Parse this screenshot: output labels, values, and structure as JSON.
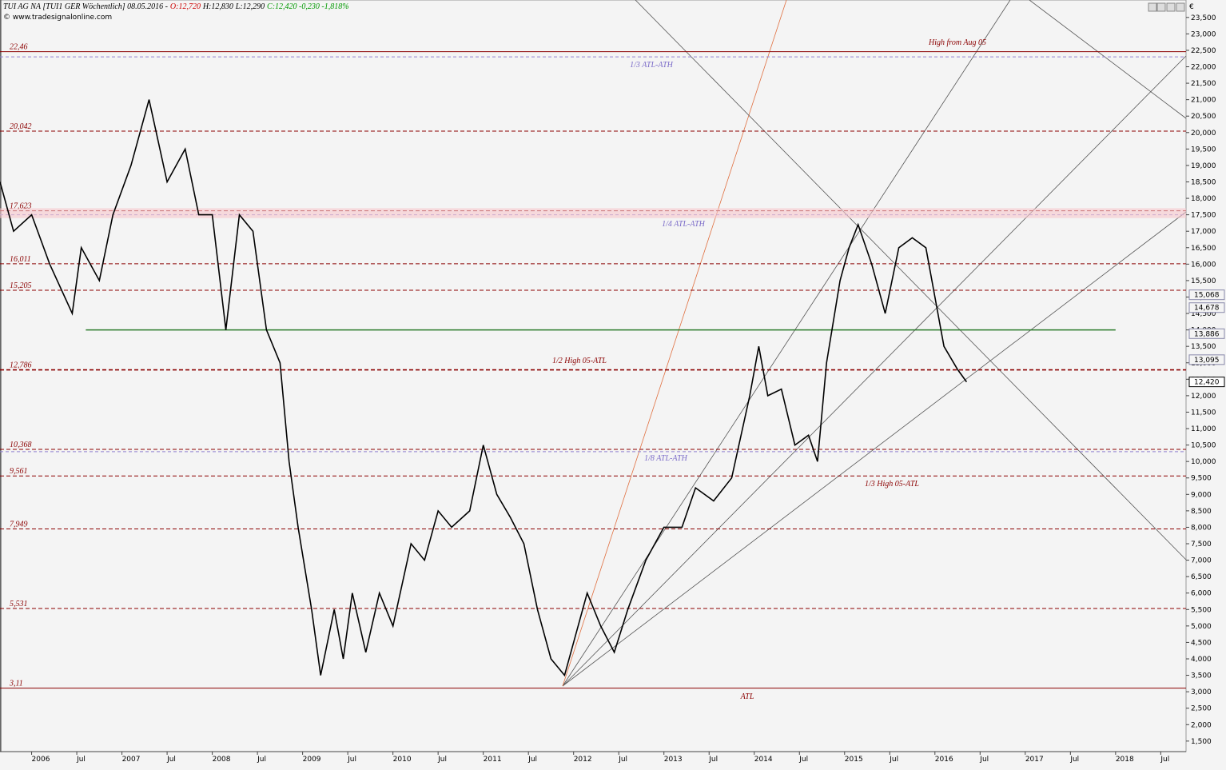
{
  "header": {
    "title": "TUI AG NA [TUI1 GER  Wöchentlich] 08.05.2016 -",
    "open": "O:12,720",
    "high": "H:12,830",
    "low": "L:12,290",
    "close": "C:12,420 -0,230 -1,818%",
    "source": "© www.tradesignalonline.com",
    "currency": "€"
  },
  "chart_data": {
    "type": "line",
    "xlim": [
      2005.65,
      2018.78
    ],
    "ylim": [
      1.18,
      24.03
    ],
    "xticks": [
      {
        "value": 2006,
        "label": "2006"
      },
      {
        "value": 2006.5,
        "label": "Jul"
      },
      {
        "value": 2007,
        "label": "2007"
      },
      {
        "value": 2007.5,
        "label": "Jul"
      },
      {
        "value": 2008,
        "label": "2008"
      },
      {
        "value": 2008.5,
        "label": "Jul"
      },
      {
        "value": 2009,
        "label": "2009"
      },
      {
        "value": 2009.5,
        "label": "Jul"
      },
      {
        "value": 2010,
        "label": "2010"
      },
      {
        "value": 2010.5,
        "label": "Jul"
      },
      {
        "value": 2011,
        "label": "2011"
      },
      {
        "value": 2011.5,
        "label": "Jul"
      },
      {
        "value": 2012,
        "label": "2012"
      },
      {
        "value": 2012.5,
        "label": "Jul"
      },
      {
        "value": 2013,
        "label": "2013"
      },
      {
        "value": 2013.5,
        "label": "Jul"
      },
      {
        "value": 2014,
        "label": "2014"
      },
      {
        "value": 2014.5,
        "label": "Jul"
      },
      {
        "value": 2015,
        "label": "2015"
      },
      {
        "value": 2015.5,
        "label": "Jul"
      },
      {
        "value": 2016,
        "label": "2016"
      },
      {
        "value": 2016.5,
        "label": "Jul"
      },
      {
        "value": 2017,
        "label": "2017"
      },
      {
        "value": 2017.5,
        "label": "Jul"
      },
      {
        "value": 2018,
        "label": "2018"
      },
      {
        "value": 2018.5,
        "label": "Jul"
      }
    ],
    "yticks": [
      {
        "value": 1.5,
        "label": "1,500"
      },
      {
        "value": 2,
        "label": "2,000"
      },
      {
        "value": 2.5,
        "label": "2,500"
      },
      {
        "value": 3,
        "label": "3,000"
      },
      {
        "value": 3.5,
        "label": "3,500"
      },
      {
        "value": 4,
        "label": "4,000"
      },
      {
        "value": 4.5,
        "label": "4,500"
      },
      {
        "value": 5,
        "label": "5,000"
      },
      {
        "value": 5.5,
        "label": "5,500"
      },
      {
        "value": 6,
        "label": "6,000"
      },
      {
        "value": 6.5,
        "label": "6,500"
      },
      {
        "value": 7,
        "label": "7,000"
      },
      {
        "value": 7.5,
        "label": "7,500"
      },
      {
        "value": 8,
        "label": "8,000"
      },
      {
        "value": 8.5,
        "label": "8,500"
      },
      {
        "value": 9,
        "label": "9,000"
      },
      {
        "value": 9.5,
        "label": "9,500"
      },
      {
        "value": 10,
        "label": "10,000"
      },
      {
        "value": 10.5,
        "label": "10,500"
      },
      {
        "value": 11,
        "label": "11,000"
      },
      {
        "value": 11.5,
        "label": "11,500"
      },
      {
        "value": 12,
        "label": "12,000"
      },
      {
        "value": 12.5,
        "label": "12,500"
      },
      {
        "value": 13,
        "label": "13,000"
      },
      {
        "value": 13.5,
        "label": "13,500"
      },
      {
        "value": 14,
        "label": "14,000"
      },
      {
        "value": 14.5,
        "label": "14,500"
      },
      {
        "value": 15,
        "label": "15,000"
      },
      {
        "value": 15.5,
        "label": "15,500"
      },
      {
        "value": 16,
        "label": "16,000"
      },
      {
        "value": 16.5,
        "label": "16,500"
      },
      {
        "value": 17,
        "label": "17,000"
      },
      {
        "value": 17.5,
        "label": "17,500"
      },
      {
        "value": 18,
        "label": "18,000"
      },
      {
        "value": 18.5,
        "label": "18,500"
      },
      {
        "value": 19,
        "label": "19,000"
      },
      {
        "value": 19.5,
        "label": "19,500"
      },
      {
        "value": 20,
        "label": "20,000"
      },
      {
        "value": 20.5,
        "label": "20,500"
      },
      {
        "value": 21,
        "label": "21,000"
      },
      {
        "value": 21.5,
        "label": "21,500"
      },
      {
        "value": 22,
        "label": "22,000"
      },
      {
        "value": 22.5,
        "label": "22,500"
      },
      {
        "value": 23,
        "label": "23,000"
      },
      {
        "value": 23.5,
        "label": "23,500"
      }
    ],
    "series": [
      {
        "name": "TUI1",
        "color": "#000000",
        "x": [
          2005.65,
          2005.8,
          2006.0,
          2006.2,
          2006.45,
          2006.55,
          2006.75,
          2006.9,
          2007.1,
          2007.3,
          2007.5,
          2007.7,
          2007.85,
          2008.0,
          2008.15,
          2008.3,
          2008.45,
          2008.6,
          2008.75,
          2008.85,
          2008.95,
          2009.1,
          2009.2,
          2009.35,
          2009.45,
          2009.55,
          2009.7,
          2009.85,
          2010.0,
          2010.2,
          2010.35,
          2010.5,
          2010.65,
          2010.85,
          2011.0,
          2011.15,
          2011.3,
          2011.45,
          2011.6,
          2011.75,
          2011.9,
          2012.0,
          2012.15,
          2012.3,
          2012.45,
          2012.6,
          2012.8,
          2013.0,
          2013.2,
          2013.35,
          2013.55,
          2013.75,
          2013.95,
          2014.05,
          2014.15,
          2014.3,
          2014.45,
          2014.6,
          2014.7,
          2014.8,
          2014.95,
          2015.05,
          2015.15,
          2015.3,
          2015.45,
          2015.6,
          2015.75,
          2015.9,
          2016.0,
          2016.1,
          2016.25,
          2016.35
        ],
        "values": [
          18.5,
          17,
          17.5,
          16,
          14.5,
          16.5,
          15.5,
          17.5,
          19,
          21,
          18.5,
          19.5,
          17.5,
          17.5,
          14,
          17.5,
          17,
          14,
          13,
          10,
          8,
          5.5,
          3.5,
          5.5,
          4,
          6,
          4.2,
          6,
          5,
          7.5,
          7,
          8.5,
          8,
          8.5,
          10.5,
          9,
          8.3,
          7.5,
          5.5,
          4,
          3.5,
          4.5,
          6,
          5,
          4.2,
          5.5,
          7,
          8,
          8,
          9.2,
          8.8,
          9.5,
          12,
          13.5,
          12,
          12.2,
          10.5,
          10.8,
          10,
          13,
          15.5,
          16.5,
          17.2,
          16,
          14.5,
          16.5,
          16.8,
          16.5,
          15,
          13.5,
          12.8,
          12.42
        ]
      }
    ],
    "levels": [
      {
        "value": 22.46,
        "label": "22,46"
      },
      {
        "value": 20.042,
        "label": "20,042"
      },
      {
        "value": 17.623,
        "label": "17,623"
      },
      {
        "value": 16.011,
        "label": "16,011"
      },
      {
        "value": 15.205,
        "label": "15,205"
      },
      {
        "value": 12.786,
        "label": "12,786"
      },
      {
        "value": 10.368,
        "label": "10,368"
      },
      {
        "value": 9.561,
        "label": "9,561"
      },
      {
        "value": 7.949,
        "label": "7,949"
      },
      {
        "value": 5.531,
        "label": "5,531"
      },
      {
        "value": 3.11,
        "label": "3,11"
      }
    ],
    "price_markers": [
      {
        "value": 15.068,
        "label": "15,068"
      },
      {
        "value": 14.678,
        "label": "14,678"
      },
      {
        "value": 13.886,
        "label": "13,886"
      },
      {
        "value": 13.095,
        "label": "13,095"
      },
      {
        "value": 12.42,
        "label": "12,420"
      }
    ],
    "annotations": [
      "High from Aug 05",
      "1/3 ATL-ATH",
      "1/4 ATL-ATH",
      "1/2 High 05-ATL",
      "1/8 ATL-ATH",
      "1/3 High 05-ATL",
      "ATL"
    ]
  }
}
